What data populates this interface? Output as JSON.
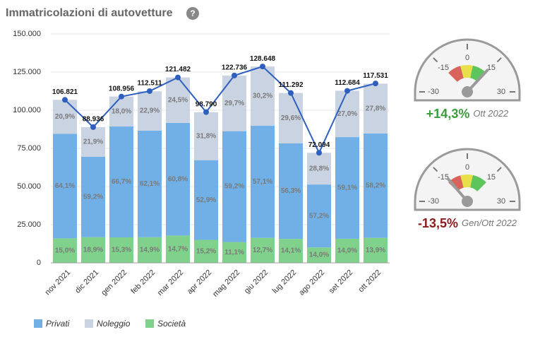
{
  "chart_data": [
    {
      "type": "bar",
      "title": "Immatricolazioni di autovetture",
      "help": "?",
      "categories": [
        "nov 2021",
        "dic 2021",
        "gen 2022",
        "feb 2022",
        "mar 2022",
        "apr 2022",
        "mag 2022",
        "giu 2022",
        "lug 2022",
        "ago 2022",
        "set 2022",
        "ott 2022"
      ],
      "series": [
        {
          "name": "Società",
          "color": "#7fd18b",
          "values": [
            15.0,
            18.9,
            15.3,
            14.9,
            14.7,
            15.2,
            11.1,
            12.7,
            14.1,
            14.0,
            14.0,
            13.9
          ],
          "value_labels": [
            "15,0%",
            "18,9%",
            "15,3%",
            "14,9%",
            "14,7%",
            "15,2%",
            "11,1%",
            "12,7%",
            "14,1%",
            "14,0%",
            "14,0%",
            "13,9%"
          ]
        },
        {
          "name": "Privati",
          "color": "#70b0e6",
          "values": [
            64.1,
            59.2,
            66.7,
            62.1,
            60.8,
            52.9,
            59.2,
            57.1,
            56.3,
            57.2,
            59.1,
            58.2
          ],
          "value_labels": [
            "64,1%",
            "59,2%",
            "66,7%",
            "62,1%",
            "60,8%",
            "52,9%",
            "59,2%",
            "57,1%",
            "56,3%",
            "57,2%",
            "59,1%",
            "58,2%"
          ]
        },
        {
          "name": "Noleggio",
          "color": "#c9d3e2",
          "values": [
            20.9,
            21.9,
            18.0,
            22.9,
            24.5,
            31.8,
            29.7,
            30.2,
            29.6,
            28.8,
            27.0,
            27.8
          ],
          "value_labels": [
            "20,9%",
            "21,9%",
            "18,0%",
            "22,9%",
            "24,5%",
            "31,8%",
            "29,7%",
            "30,2%",
            "29,6%",
            "28,8%",
            "27,0%",
            "27,8%"
          ]
        }
      ],
      "line": {
        "color": "#2e5fbf",
        "values": [
          106821,
          88936,
          108956,
          112511,
          121482,
          98790,
          122736,
          128648,
          111292,
          72094,
          112684,
          117531
        ],
        "value_labels": [
          "106.821",
          "88.936",
          "108.956",
          "112.511",
          "121.482",
          "98.790",
          "122.736",
          "128.648",
          "111.292",
          "72.094",
          "112.684",
          "117.531"
        ]
      },
      "ylim": [
        0,
        150000
      ],
      "yticks": [
        0,
        {
          "value": 25000,
          "label": "25.000"
        },
        {
          "value": 50000,
          "label": "50.000"
        },
        {
          "value": 75000,
          "label": "75.000"
        },
        {
          "value": 100000,
          "label": "100.000"
        },
        {
          "value": 125000,
          "label": "125.000"
        },
        {
          "value": 150000,
          "label": "150.000"
        }
      ],
      "grid": true
    },
    {
      "type": "gauge",
      "value": 14.3,
      "value_label": "+14,3%",
      "label": "Ott 2022",
      "color": "#3a9d3a",
      "xlim": [
        -30,
        30
      ],
      "xticks": [
        -30,
        -15,
        0,
        15,
        30
      ],
      "bands": [
        {
          "from": -15,
          "to": -5,
          "color": "#d9625b"
        },
        {
          "from": -5,
          "to": 4,
          "color": "#e8e04a"
        },
        {
          "from": 4,
          "to": 15,
          "color": "#5cc55c"
        }
      ]
    },
    {
      "type": "gauge",
      "value": -13.5,
      "value_label": "-13,5%",
      "label": "Gen/Ott 2022",
      "color": "#8b1a1a",
      "xlim": [
        -30,
        30
      ],
      "xticks": [
        -30,
        -15,
        0,
        15,
        30
      ],
      "bands": [
        {
          "from": -15,
          "to": -5,
          "color": "#d9625b"
        },
        {
          "from": -5,
          "to": 4,
          "color": "#e8e04a"
        },
        {
          "from": 4,
          "to": 15,
          "color": "#5cc55c"
        }
      ]
    }
  ]
}
